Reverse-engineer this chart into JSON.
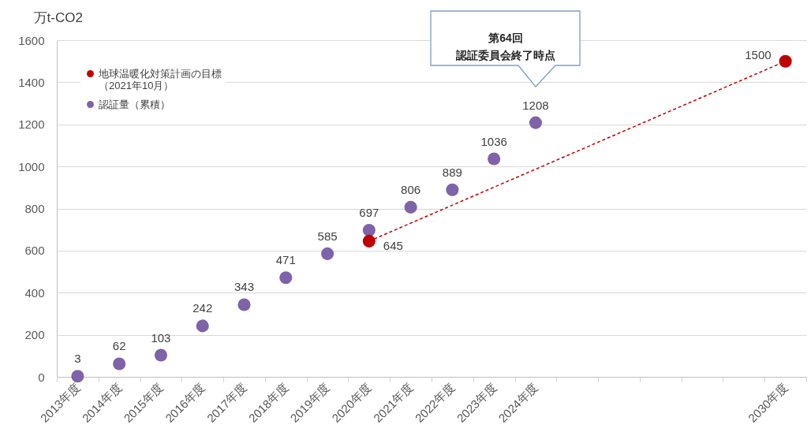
{
  "chart_data": {
    "type": "scatter",
    "ylabel": "万t-CO2",
    "categories": [
      "2013年度",
      "2014年度",
      "2015年度",
      "2016年度",
      "2017年度",
      "2018年度",
      "2019年度",
      "2020年度",
      "2021年度",
      "2022年度",
      "2023年度",
      "2024年度",
      null,
      null,
      null,
      null,
      null,
      "2030年度"
    ],
    "series": [
      {
        "name": "地球温暖化対策計画の目標（2021年10月）",
        "type": "line",
        "color": "#c00000",
        "x": [
          "2020年度",
          "2030年度"
        ],
        "values": [
          645,
          1500
        ]
      },
      {
        "name": "認証量（累積）",
        "color": "#7e63a9",
        "values": [
          3,
          62,
          103,
          242,
          343,
          471,
          585,
          697,
          806,
          889,
          1036,
          1208,
          null,
          null,
          null,
          null,
          null,
          null
        ]
      }
    ],
    "ylim": [
      0,
      1600
    ],
    "yticks": [
      0,
      200,
      400,
      600,
      800,
      1000,
      1200,
      1400,
      1600
    ],
    "grid": "y",
    "legend": "top left",
    "marker": "circle",
    "line_style": "dashed",
    "data_labels": true,
    "annotations": [
      "第64回認証委員会終了時点"
    ]
  }
}
